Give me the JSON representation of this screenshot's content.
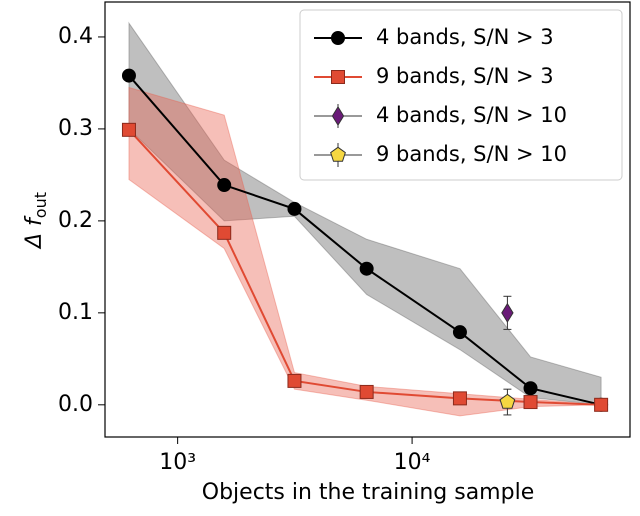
{
  "chart_data": {
    "type": "line",
    "xlabel": "Objects in the training sample",
    "ylabel": "Δ f",
    "ylabel_sub": "out",
    "xscale": "log",
    "xlim": [
      490,
      85000
    ],
    "ylim": [
      -0.035,
      0.438
    ],
    "xticks": [
      {
        "value": 1000,
        "label": "10³"
      },
      {
        "value": 10000,
        "label": "10⁴"
      }
    ],
    "yticks": [
      {
        "value": 0,
        "label": "0.0"
      },
      0.1,
      0.2,
      0.3,
      0.4
    ],
    "legend": "upper right",
    "series": [
      {
        "name": "4 bands, S/N > 3",
        "color": "#000000",
        "band_color": "#606060",
        "marker": "circle",
        "x": [
          620,
          1580,
          3150,
          6400,
          16000,
          32000,
          64000
        ],
        "values": [
          0.358,
          0.239,
          0.213,
          0.148,
          0.079,
          0.018,
          0.0
        ],
        "upper": [
          0.415,
          0.266,
          0.22,
          0.18,
          0.148,
          0.052,
          0.03
        ],
        "lower": [
          0.3,
          0.2,
          0.205,
          0.12,
          0.06,
          0.008,
          0.0
        ]
      },
      {
        "name": "9 bands, S/N > 3",
        "color": "#e04a33",
        "band_color": "#e8604d",
        "marker": "square",
        "x": [
          620,
          1580,
          3150,
          6400,
          16000,
          32000,
          64000
        ],
        "values": [
          0.299,
          0.187,
          0.026,
          0.014,
          0.007,
          0.003,
          0.0
        ],
        "upper": [
          0.345,
          0.315,
          0.035,
          0.02,
          0.012,
          0.006,
          0.0
        ],
        "lower": [
          0.245,
          0.17,
          0.017,
          0.005,
          -0.012,
          -0.002,
          0.0
        ]
      },
      {
        "name": "4 bands, S/N > 10",
        "color": "#6a1b78",
        "marker": "diamond",
        "x": [
          25500
        ],
        "values": [
          0.1
        ],
        "errors": [
          0.018
        ]
      },
      {
        "name": "9 bands, S/N > 10",
        "color": "#f5d742",
        "marker": "pentagon",
        "x": [
          25500
        ],
        "values": [
          0.003
        ],
        "errors": [
          0.014
        ]
      }
    ]
  }
}
